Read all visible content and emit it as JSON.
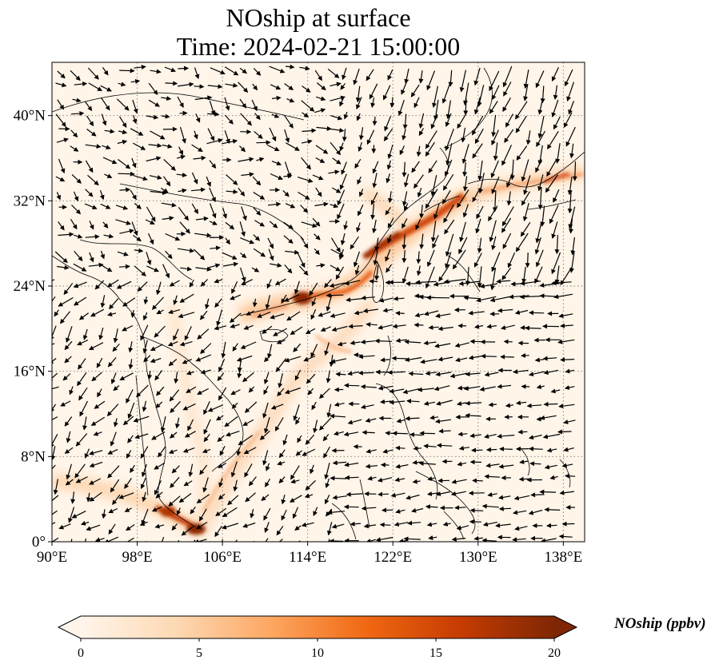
{
  "title": {
    "line1": "NOship at surface",
    "line2": "Time: 2024-02-21 15:00:00"
  },
  "map": {
    "extent": {
      "lon": [
        90,
        140
      ],
      "lat": [
        0,
        45
      ]
    },
    "background": "#fff5e9",
    "gridlines": "dotted",
    "lon_ticks": [
      {
        "value": 90,
        "label": "90°E"
      },
      {
        "value": 98,
        "label": "98°E"
      },
      {
        "value": 106,
        "label": "106°E"
      },
      {
        "value": 114,
        "label": "114°E"
      },
      {
        "value": 122,
        "label": "122°E"
      },
      {
        "value": 130,
        "label": "130°E"
      },
      {
        "value": 138,
        "label": "138°E"
      }
    ],
    "lat_ticks": [
      {
        "value": 0,
        "label": "0°"
      },
      {
        "value": 8,
        "label": "8°N"
      },
      {
        "value": 16,
        "label": "16°N"
      },
      {
        "value": 24,
        "label": "24°N"
      },
      {
        "value": 32,
        "label": "32°N"
      },
      {
        "value": 40,
        "label": "40°N"
      }
    ],
    "wind_vectors": "black quivers"
  },
  "colorbar": {
    "label": "NOship (ppbv)",
    "colormap": [
      "#fff5eb",
      "#fdd9b4",
      "#fda762",
      "#f16913",
      "#c63c02",
      "#7f2704"
    ],
    "range": [
      0,
      20
    ],
    "extend": "both",
    "ticks": [
      {
        "value": 0,
        "label": "0"
      },
      {
        "value": 5,
        "label": "5"
      },
      {
        "value": 10,
        "label": "10"
      },
      {
        "value": 15,
        "label": "15"
      },
      {
        "value": 20,
        "label": "20"
      }
    ]
  }
}
